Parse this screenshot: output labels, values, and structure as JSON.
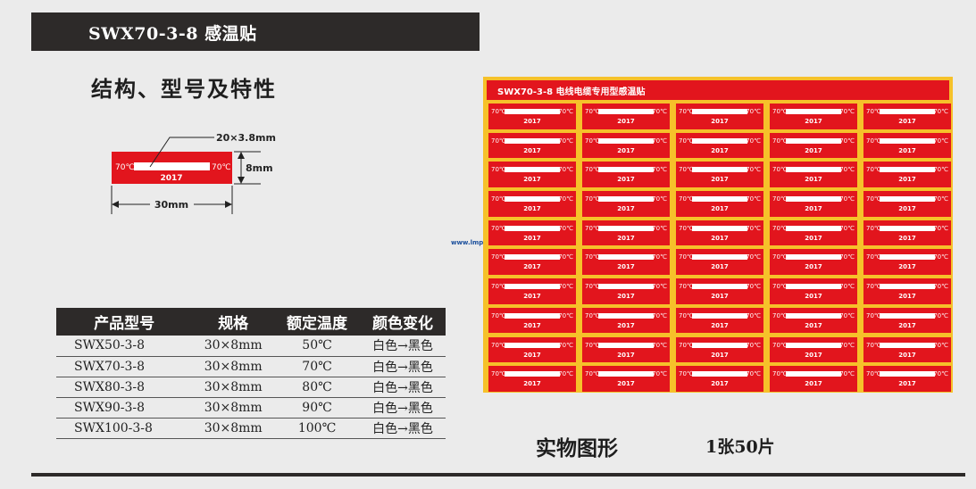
{
  "title": "SWX70-3-8  感温贴",
  "structure_heading": "结构、型号及特性",
  "diagram": {
    "size_label": "20×3.8mm",
    "height_label": "8mm",
    "width_label": "30mm",
    "left_temp": "70℃",
    "right_temp": "70℃",
    "year": "2017",
    "label_color": "#e2151d"
  },
  "spec_table": {
    "headers": [
      "产品型号",
      "规格",
      "额定温度",
      "颜色变化"
    ],
    "rows": [
      [
        "SWX50-3-8",
        "30×8mm",
        "50℃",
        "白色→黑色"
      ],
      [
        "SWX70-3-8",
        "30×8mm",
        "70℃",
        "白色→黑色"
      ],
      [
        "SWX80-3-8",
        "30×8mm",
        "80℃",
        "白色→黑色"
      ],
      [
        "SWX90-3-8",
        "30×8mm",
        "90℃",
        "白色→黑色"
      ],
      [
        "SWX100-3-8",
        "30×8mm",
        "100℃",
        "白色→黑色"
      ]
    ]
  },
  "sheet": {
    "header": "SWX70-3-8 电线电缆专用型感温贴",
    "label_temp": "70℃",
    "label_year": "2017",
    "columns": 5,
    "rows": 10,
    "background_color": "#f6c12a",
    "label_color": "#e2151d"
  },
  "watermark": "www.lmp2b.com",
  "caption": "实物图形",
  "caption_count": "1张50片"
}
